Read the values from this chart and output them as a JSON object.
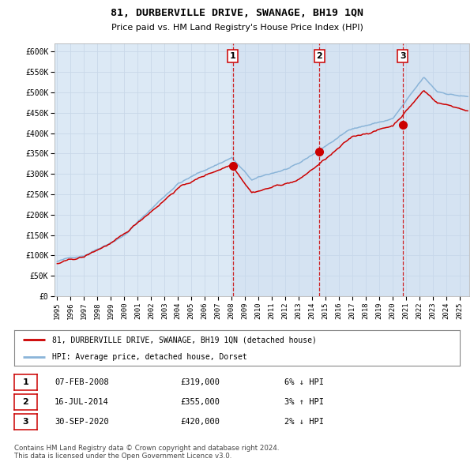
{
  "title": "81, DURBERVILLE DRIVE, SWANAGE, BH19 1QN",
  "subtitle": "Price paid vs. HM Land Registry's House Price Index (HPI)",
  "background_color": "#ffffff",
  "plot_bg_color": "#dce9f5",
  "grid_color": "#c8d8e8",
  "hpi_line_color": "#8ab4d8",
  "price_line_color": "#cc0000",
  "marker_color": "#cc0000",
  "dashed_line_color": "#cc0000",
  "ylim": [
    0,
    620000
  ],
  "yticks": [
    0,
    50000,
    100000,
    150000,
    200000,
    250000,
    300000,
    350000,
    400000,
    450000,
    500000,
    550000,
    600000
  ],
  "ytick_labels": [
    "£0",
    "£50K",
    "£100K",
    "£150K",
    "£200K",
    "£250K",
    "£300K",
    "£350K",
    "£400K",
    "£450K",
    "£500K",
    "£550K",
    "£600K"
  ],
  "xlim_start": 1994.8,
  "xlim_end": 2025.7,
  "sale_dates": [
    2008.08,
    2014.54,
    2020.75
  ],
  "sale_prices": [
    319000,
    355000,
    420000
  ],
  "sale_labels": [
    "1",
    "2",
    "3"
  ],
  "legend_entries": [
    "81, DURBERVILLE DRIVE, SWANAGE, BH19 1QN (detached house)",
    "HPI: Average price, detached house, Dorset"
  ],
  "table_data": [
    [
      "1",
      "07-FEB-2008",
      "£319,000",
      "6% ↓ HPI"
    ],
    [
      "2",
      "16-JUL-2014",
      "£355,000",
      "3% ↑ HPI"
    ],
    [
      "3",
      "30-SEP-2020",
      "£420,000",
      "2% ↓ HPI"
    ]
  ],
  "footnote": "Contains HM Land Registry data © Crown copyright and database right 2024.\nThis data is licensed under the Open Government Licence v3.0.",
  "xtick_years": [
    1995,
    1996,
    1997,
    1998,
    1999,
    2000,
    2001,
    2002,
    2003,
    2004,
    2005,
    2006,
    2007,
    2008,
    2009,
    2010,
    2011,
    2012,
    2013,
    2014,
    2015,
    2016,
    2017,
    2018,
    2019,
    2020,
    2021,
    2022,
    2023,
    2024,
    2025
  ]
}
